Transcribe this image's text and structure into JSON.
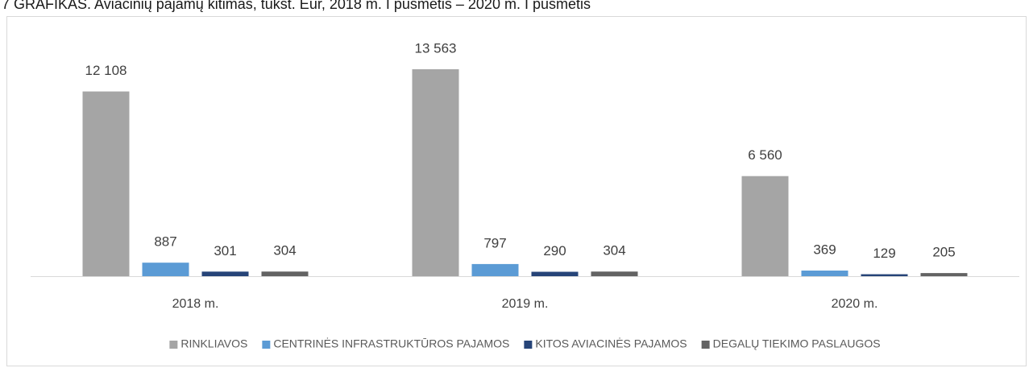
{
  "chart_data": {
    "type": "bar",
    "title": "7 GRAFIKAS. Aviacinių pajamų kitimas, tūkst. Eur, 2018 m. I pusmetis – 2020 m. I pusmetis",
    "categories": [
      "2018 m.",
      "2019 m.",
      "2020 m."
    ],
    "series": [
      {
        "name": "RINKLIAVOS",
        "color": "#a5a5a5",
        "values": [
          12108,
          13563,
          6560
        ],
        "value_labels": [
          "12 108",
          "13 563",
          "6 560"
        ]
      },
      {
        "name": "CENTRINĖS INFRASTRUKTŪROS PAJAMOS",
        "color": "#5b9bd5",
        "values": [
          887,
          797,
          369
        ]
      },
      {
        "name": "KITOS AVIACINĖS PAJAMOS",
        "color": "#264478",
        "values": [
          301,
          290,
          129
        ]
      },
      {
        "name": "DEGALŲ TIEKIMO PASLAUGOS",
        "color": "#636363",
        "values": [
          304,
          304,
          205
        ]
      }
    ],
    "legend": "bottom"
  }
}
